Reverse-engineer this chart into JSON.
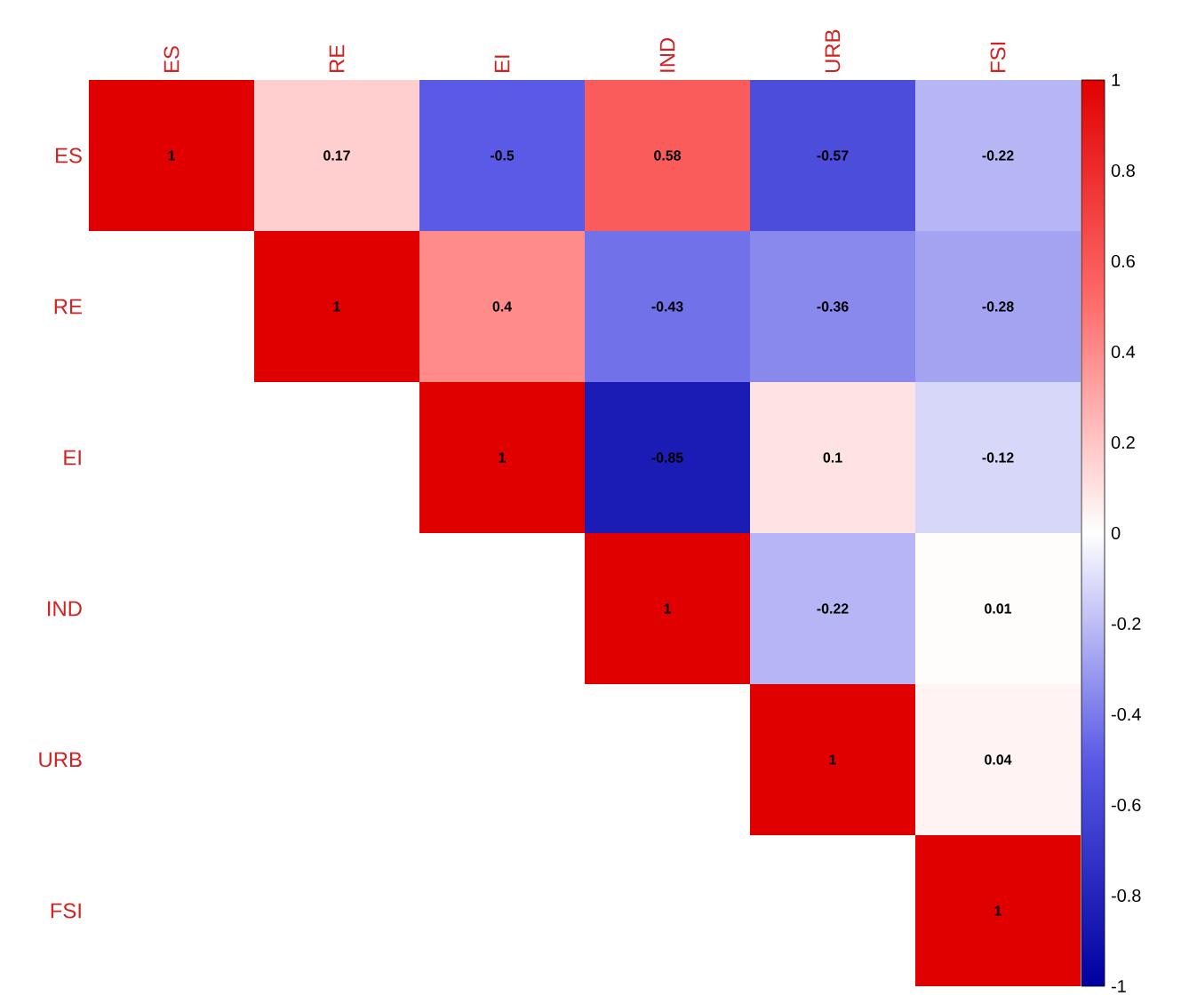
{
  "chart_data": {
    "type": "heatmap",
    "categories": [
      "ES",
      "RE",
      "EI",
      "IND",
      "URB",
      "FSI"
    ],
    "y_categories": [
      "ES",
      "RE",
      "EI",
      "IND",
      "URB",
      "FSI"
    ],
    "cells": [
      [
        1,
        0.17,
        -0.5,
        0.58,
        -0.57,
        -0.22
      ],
      [
        null,
        1,
        0.4,
        -0.43,
        -0.36,
        -0.28
      ],
      [
        null,
        null,
        1,
        -0.85,
        0.1,
        -0.12
      ],
      [
        null,
        null,
        null,
        1,
        -0.22,
        0.01
      ],
      [
        null,
        null,
        null,
        null,
        1,
        0.04
      ],
      [
        null,
        null,
        null,
        null,
        null,
        1
      ]
    ],
    "data_labels": true,
    "clim": [
      -1,
      1
    ],
    "cticks": [
      -1,
      -0.8,
      -0.6,
      -0.4,
      -0.2,
      0,
      0.2,
      0.4,
      0.6,
      0.8,
      1
    ]
  }
}
